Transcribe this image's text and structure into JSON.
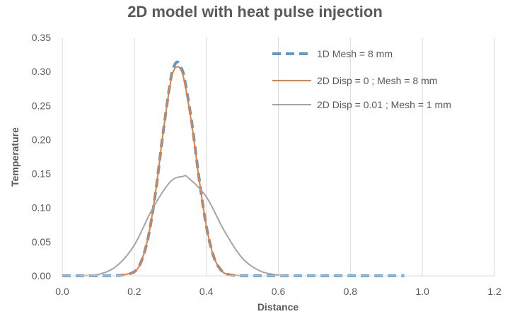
{
  "chart_data": {
    "type": "line",
    "title": "2D model with heat pulse injection",
    "xlabel": "Distance",
    "ylabel": "Temperature",
    "xlim": [
      0,
      1.2
    ],
    "ylim": [
      0,
      0.35
    ],
    "x_ticks": [
      "0.0",
      "0.2",
      "0.4",
      "0.6",
      "0.8",
      "1.0",
      "1.2"
    ],
    "y_ticks": [
      "0.00",
      "0.05",
      "0.10",
      "0.15",
      "0.20",
      "0.25",
      "0.30",
      "0.35"
    ],
    "grid": "vertical",
    "legend_position": "top-right",
    "series": [
      {
        "name": "1D Mesh = 8 mm",
        "color": "#5b9bd5",
        "style": "dashed",
        "x": [
          0.0,
          0.1,
          0.16,
          0.2,
          0.22,
          0.24,
          0.26,
          0.28,
          0.3,
          0.31,
          0.32,
          0.33,
          0.34,
          0.36,
          0.38,
          0.4,
          0.42,
          0.44,
          0.46,
          0.5,
          0.6,
          0.8,
          0.95
        ],
        "y": [
          0.0,
          0.0,
          0.0005,
          0.006,
          0.022,
          0.06,
          0.126,
          0.21,
          0.285,
          0.307,
          0.314,
          0.306,
          0.288,
          0.224,
          0.143,
          0.073,
          0.029,
          0.009,
          0.002,
          0.0,
          0.0,
          0.0,
          0.0
        ]
      },
      {
        "name": "2D Disp = 0 ; Mesh = 8 mm",
        "color": "#ed7d31",
        "style": "solid",
        "x": [
          0.16,
          0.2,
          0.22,
          0.24,
          0.26,
          0.28,
          0.3,
          0.31,
          0.32,
          0.33,
          0.34,
          0.36,
          0.38,
          0.4,
          0.42,
          0.44,
          0.46,
          0.5
        ],
        "y": [
          0.0005,
          0.006,
          0.022,
          0.06,
          0.126,
          0.21,
          0.282,
          0.302,
          0.307,
          0.302,
          0.283,
          0.221,
          0.142,
          0.073,
          0.029,
          0.009,
          0.002,
          0.0
        ]
      },
      {
        "name": "2D Disp = 0.01 ; Mesh = 1 mm",
        "color": "#a5a5a5",
        "style": "solid",
        "x": [
          0.05,
          0.1,
          0.15,
          0.2,
          0.25,
          0.3,
          0.335,
          0.35,
          0.4,
          0.45,
          0.5,
          0.55,
          0.6,
          0.62
        ],
        "y": [
          0.0,
          0.002,
          0.014,
          0.045,
          0.098,
          0.138,
          0.146,
          0.144,
          0.116,
          0.066,
          0.026,
          0.007,
          0.001,
          0.0
        ]
      }
    ]
  }
}
